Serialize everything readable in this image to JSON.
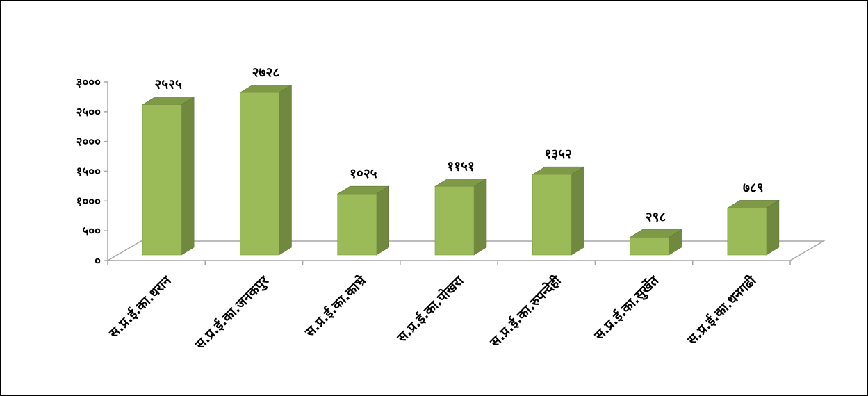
{
  "chart_data": {
    "type": "bar",
    "style": "3d-column",
    "categories": [
      "स.प्र.ई.का.धरान",
      "स.प्र.ई.का.जनकपुर",
      "स.प्र.ई.का.काभ्रे",
      "स.प्र.ई.का.पोखरा",
      "स.प्र.ई.का.रुपन्देही",
      "स.प्र.ई.का.सुर्खेत",
      "स.प्र.ई.का.धनगढी"
    ],
    "values": [
      2525,
      2728,
      1025,
      1151,
      1352,
      298,
      789
    ],
    "data_labels": [
      "२५२५",
      "२७२८",
      "१०२५",
      "११५१",
      "१३५२",
      "२९८",
      "७८९"
    ],
    "y_ticks": [
      {
        "value": 0,
        "label": "०"
      },
      {
        "value": 500,
        "label": "५००"
      },
      {
        "value": 1000,
        "label": "१०००"
      },
      {
        "value": 1500,
        "label": "१५००"
      },
      {
        "value": 2000,
        "label": "२०००"
      },
      {
        "value": 2500,
        "label": "२५००"
      },
      {
        "value": 3000,
        "label": "३०००"
      }
    ],
    "ylim": [
      0,
      3000
    ],
    "title": "",
    "xlabel": "",
    "ylabel": "",
    "grid": false,
    "legend": "none",
    "colors": {
      "bar_front": "#9bbb59",
      "bar_side": "#71893f",
      "bar_top": "#7e9a47",
      "axis": "#a6a6a6"
    }
  }
}
